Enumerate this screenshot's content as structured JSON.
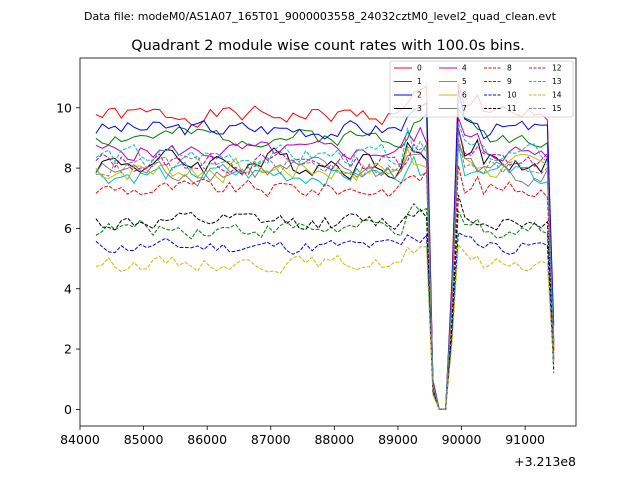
{
  "chart_data": {
    "type": "line",
    "suptitle": "Data file: modeM0/AS1A07_165T01_9000003558_24032cztM0_level2_quad_clean.evt",
    "title": "Quadrant 2 module wise count rates with 100.0s bins.",
    "xlabel": "",
    "ylabel": "",
    "x_offset_label": "+3.213e8",
    "xlim": [
      84000,
      91800
    ],
    "ylim": [
      -0.55,
      11.65
    ],
    "xticks": [
      84000,
      85000,
      86000,
      87000,
      88000,
      89000,
      90000,
      91000
    ],
    "xtick_labels": [
      "84000",
      "85000",
      "86000",
      "87000",
      "88000",
      "89000",
      "90000",
      "91000"
    ],
    "yticks": [
      0,
      2,
      4,
      6,
      8,
      10
    ],
    "ytick_labels": [
      "0",
      "2",
      "4",
      "6",
      "8",
      "10"
    ],
    "x_start": 84250,
    "x_step": 100,
    "series": [
      {
        "name": "0",
        "color": "#ff0000",
        "style": "solid",
        "level": 9.75,
        "amp": 0.3,
        "seed": 1
      },
      {
        "name": "1",
        "color": "#008000",
        "style": "solid",
        "level": 9.05,
        "amp": 0.3,
        "seed": 2
      },
      {
        "name": "2",
        "color": "#0000ff",
        "style": "solid",
        "level": 9.3,
        "amp": 0.3,
        "seed": 3
      },
      {
        "name": "3",
        "color": "#000000",
        "style": "solid",
        "level": 8.2,
        "amp": 0.45,
        "seed": 4
      },
      {
        "name": "4",
        "color": "#bf00bf",
        "style": "solid",
        "level": 8.55,
        "amp": 0.3,
        "seed": 5
      },
      {
        "name": "5",
        "color": "#00bfbf",
        "style": "solid",
        "level": 7.8,
        "amp": 0.35,
        "seed": 6
      },
      {
        "name": "6",
        "color": "#bfbf00",
        "style": "solid",
        "level": 7.95,
        "amp": 0.4,
        "seed": 7
      },
      {
        "name": "7",
        "color": "#808080",
        "style": "solid",
        "level": 7.9,
        "amp": 0.4,
        "seed": 8
      },
      {
        "name": "8",
        "color": "#ff0000",
        "style": "dashed",
        "level": 7.3,
        "amp": 0.3,
        "seed": 9
      },
      {
        "name": "9",
        "color": "#008000",
        "style": "dashed",
        "level": 6.0,
        "amp": 0.3,
        "seed": 10
      },
      {
        "name": "10",
        "color": "#0000ff",
        "style": "dashed",
        "level": 5.4,
        "amp": 0.25,
        "seed": 11
      },
      {
        "name": "11",
        "color": "#000000",
        "style": "dashed",
        "level": 6.2,
        "amp": 0.3,
        "seed": 12
      },
      {
        "name": "12",
        "color": "#bf00bf",
        "style": "dashed",
        "level": 8.2,
        "amp": 0.35,
        "seed": 13
      },
      {
        "name": "13",
        "color": "#00bfbf",
        "style": "dashed",
        "level": 8.4,
        "amp": 0.35,
        "seed": 14
      },
      {
        "name": "14",
        "color": "#bfbf00",
        "style": "dashed",
        "level": 4.85,
        "amp": 0.25,
        "seed": 15
      },
      {
        "name": "15",
        "color": "#808080",
        "style": "dashed",
        "level": 8.05,
        "amp": 0.35,
        "seed": 16
      }
    ],
    "legend": {
      "location": "top-right",
      "columns": 4
    }
  }
}
